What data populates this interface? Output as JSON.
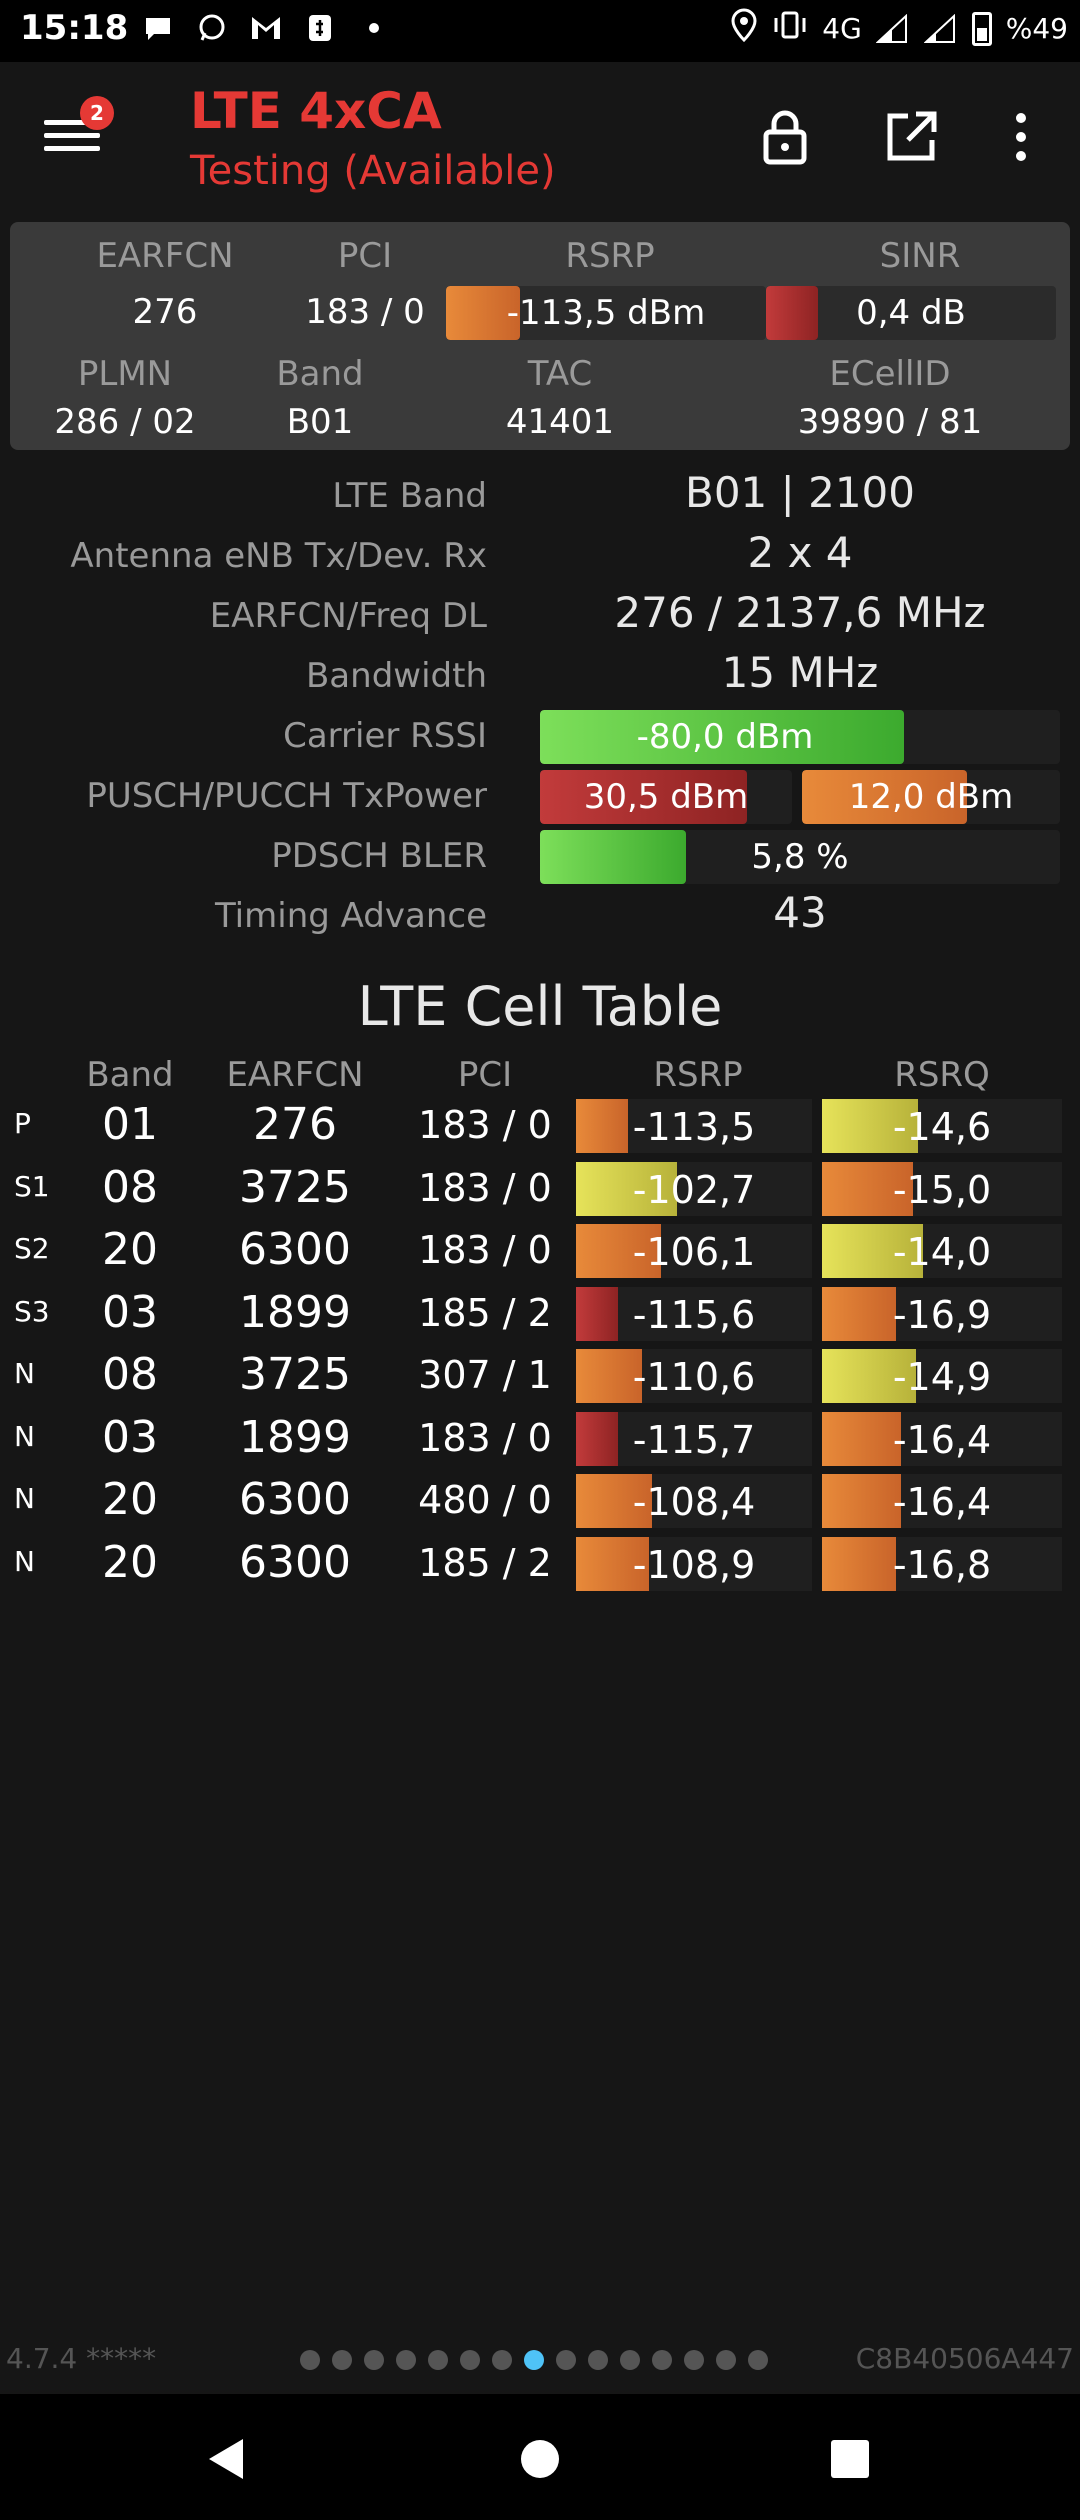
{
  "status_bar": {
    "time": "15:18",
    "network": "4G",
    "battery": "%49",
    "icons": [
      "chat-bubble-icon",
      "whatsapp-icon",
      "gmail-icon",
      "wallet-icon",
      "dot-icon",
      "location-icon",
      "vibrate-icon",
      "signal-icon",
      "signal-icon",
      "battery-icon"
    ]
  },
  "app_bar": {
    "title": "LTE 4xCA",
    "subtitle": "Testing (Available)",
    "badge": "2",
    "icons": [
      "menu-icon",
      "lock-icon",
      "open-external-icon",
      "more-vert-icon"
    ]
  },
  "summary": {
    "labels": {
      "earfcn": "EARFCN",
      "pci": "PCI",
      "rsrp": "RSRP",
      "sinr": "SINR",
      "plmn": "PLMN",
      "band": "Band",
      "tac": "TAC",
      "ecellid": "ECellID"
    },
    "values": {
      "earfcn": "276",
      "pci": "183 / 0",
      "rsrp": "-113,5 dBm",
      "sinr": "0,4 dB",
      "plmn": "286 / 02",
      "band": "B01",
      "tac": "41401",
      "ecellid": "39890 / 81"
    },
    "rsrp_fill": 0.23,
    "sinr_fill": 0.18
  },
  "details": {
    "lte_band_label": "LTE Band",
    "lte_band_value": "B01 | 2100",
    "antenna_label": "Antenna eNB Tx/Dev. Rx",
    "antenna_value": "2 x 4",
    "earfcn_freq_label": "EARFCN/Freq DL",
    "earfcn_freq_value": "276 / 2137,6 MHz",
    "bandwidth_label": "Bandwidth",
    "bandwidth_value": "15 MHz",
    "rssi_label": "Carrier RSSI",
    "rssi_value": "-80,0 dBm",
    "rssi_fill": 0.7,
    "txpower_label": "PUSCH/PUCCH TxPower",
    "pusch_value": "30,5 dBm",
    "pusch_fill": 0.82,
    "pucch_value": "12,0 dBm",
    "pucch_fill": 0.64,
    "bler_label": "PDSCH BLER",
    "bler_value": "5,8 %",
    "bler_fill": 0.28,
    "ta_label": "Timing Advance",
    "ta_value": "43"
  },
  "cell_table": {
    "title": "LTE Cell Table",
    "headers": {
      "band": "Band",
      "earfcn": "EARFCN",
      "pci": "PCI",
      "rsrp": "RSRP",
      "rsrq": "RSRQ"
    },
    "rows": [
      {
        "type": "P",
        "band": "01",
        "earfcn": "276",
        "pci": "183 / 0",
        "rsrp": "-113,5",
        "rsrp_color": "orange",
        "rsrp_fill": 0.22,
        "rsrq": "-14,6",
        "rsrq_color": "yellow",
        "rsrq_fill": 0.4
      },
      {
        "type": "S1",
        "band": "08",
        "earfcn": "3725",
        "pci": "183 / 0",
        "rsrp": "-102,7",
        "rsrp_color": "yellow",
        "rsrp_fill": 0.43,
        "rsrq": "-15,0",
        "rsrq_color": "orange",
        "rsrq_fill": 0.38
      },
      {
        "type": "S2",
        "band": "20",
        "earfcn": "6300",
        "pci": "183 / 0",
        "rsrp": "-106,1",
        "rsrp_color": "orange",
        "rsrp_fill": 0.36,
        "rsrq": "-14,0",
        "rsrq_color": "yellow",
        "rsrq_fill": 0.42
      },
      {
        "type": "S3",
        "band": "03",
        "earfcn": "1899",
        "pci": "185 / 2",
        "rsrp": "-115,6",
        "rsrp_color": "red",
        "rsrp_fill": 0.18,
        "rsrq": "-16,9",
        "rsrq_color": "orange",
        "rsrq_fill": 0.31
      },
      {
        "type": "N",
        "band": "08",
        "earfcn": "3725",
        "pci": "307 / 1",
        "rsrp": "-110,6",
        "rsrp_color": "orange",
        "rsrp_fill": 0.28,
        "rsrq": "-14,9",
        "rsrq_color": "yellow",
        "rsrq_fill": 0.39
      },
      {
        "type": "N",
        "band": "03",
        "earfcn": "1899",
        "pci": "183 / 0",
        "rsrp": "-115,7",
        "rsrp_color": "red",
        "rsrp_fill": 0.18,
        "rsrq": "-16,4",
        "rsrq_color": "orange",
        "rsrq_fill": 0.33
      },
      {
        "type": "N",
        "band": "20",
        "earfcn": "6300",
        "pci": "480 / 0",
        "rsrp": "-108,4",
        "rsrp_color": "orange",
        "rsrp_fill": 0.32,
        "rsrq": "-16,4",
        "rsrq_color": "orange",
        "rsrq_fill": 0.33
      },
      {
        "type": "N",
        "band": "20",
        "earfcn": "6300",
        "pci": "185 / 2",
        "rsrp": "-108,9",
        "rsrp_color": "orange",
        "rsrp_fill": 0.31,
        "rsrq": "-16,8",
        "rsrq_color": "orange",
        "rsrq_fill": 0.31
      }
    ]
  },
  "footer": {
    "version": "4.7.4 *****",
    "device_id": "C8B40506A447",
    "page_count": 15,
    "active_page": 7
  },
  "nav": {
    "icons": [
      "back-icon",
      "home-icon",
      "recents-icon"
    ]
  }
}
